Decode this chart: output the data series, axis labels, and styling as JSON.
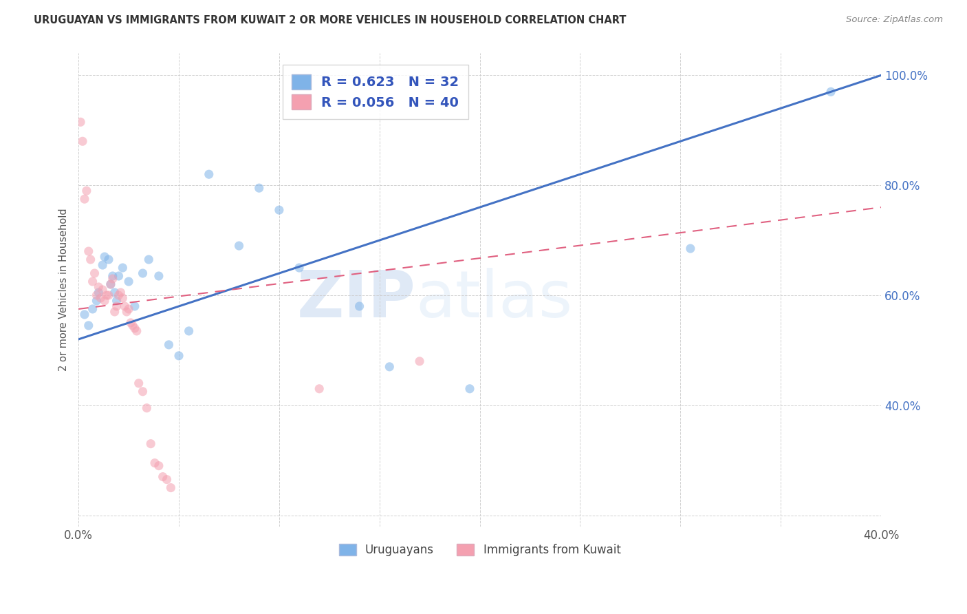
{
  "title": "URUGUAYAN VS IMMIGRANTS FROM KUWAIT 2 OR MORE VEHICLES IN HOUSEHOLD CORRELATION CHART",
  "source": "Source: ZipAtlas.com",
  "ylabel": "2 or more Vehicles in Household",
  "xlim": [
    0.0,
    0.4
  ],
  "ylim": [
    0.18,
    1.04
  ],
  "xticks": [
    0.0,
    0.05,
    0.1,
    0.15,
    0.2,
    0.25,
    0.3,
    0.35,
    0.4
  ],
  "yticks": [
    0.2,
    0.4,
    0.6,
    0.8,
    1.0
  ],
  "blue_color": "#7fb3e8",
  "pink_color": "#f4a0b0",
  "blue_line_color": "#4472c4",
  "pink_line_color": "#e06080",
  "watermark_zip": "ZIP",
  "watermark_atlas": "atlas",
  "blue_scatter_x": [
    0.003,
    0.005,
    0.007,
    0.009,
    0.01,
    0.012,
    0.013,
    0.015,
    0.016,
    0.017,
    0.018,
    0.019,
    0.02,
    0.022,
    0.025,
    0.028,
    0.032,
    0.035,
    0.04,
    0.045,
    0.05,
    0.055,
    0.065,
    0.08,
    0.09,
    0.1,
    0.11,
    0.14,
    0.155,
    0.195,
    0.305,
    0.375
  ],
  "blue_scatter_y": [
    0.565,
    0.545,
    0.575,
    0.59,
    0.605,
    0.655,
    0.67,
    0.665,
    0.62,
    0.635,
    0.605,
    0.59,
    0.635,
    0.65,
    0.625,
    0.58,
    0.64,
    0.665,
    0.635,
    0.51,
    0.49,
    0.535,
    0.82,
    0.69,
    0.795,
    0.755,
    0.65,
    0.58,
    0.47,
    0.43,
    0.685,
    0.97
  ],
  "pink_scatter_x": [
    0.001,
    0.002,
    0.003,
    0.004,
    0.005,
    0.006,
    0.007,
    0.008,
    0.009,
    0.01,
    0.011,
    0.012,
    0.013,
    0.014,
    0.015,
    0.016,
    0.017,
    0.018,
    0.019,
    0.02,
    0.021,
    0.022,
    0.023,
    0.024,
    0.025,
    0.026,
    0.027,
    0.028,
    0.029,
    0.03,
    0.032,
    0.034,
    0.036,
    0.038,
    0.04,
    0.042,
    0.044,
    0.046,
    0.12,
    0.17
  ],
  "pink_scatter_y": [
    0.915,
    0.88,
    0.775,
    0.79,
    0.68,
    0.665,
    0.625,
    0.64,
    0.6,
    0.615,
    0.595,
    0.61,
    0.59,
    0.6,
    0.6,
    0.62,
    0.63,
    0.57,
    0.58,
    0.6,
    0.605,
    0.595,
    0.58,
    0.57,
    0.575,
    0.55,
    0.545,
    0.54,
    0.535,
    0.44,
    0.425,
    0.395,
    0.33,
    0.295,
    0.29,
    0.27,
    0.265,
    0.25,
    0.43,
    0.48
  ],
  "blue_line_x": [
    0.0,
    0.4
  ],
  "blue_line_y": [
    0.52,
    1.0
  ],
  "pink_line_x": [
    0.0,
    0.4
  ],
  "pink_line_y": [
    0.575,
    0.76
  ],
  "marker_size": 90,
  "alpha": 0.55
}
